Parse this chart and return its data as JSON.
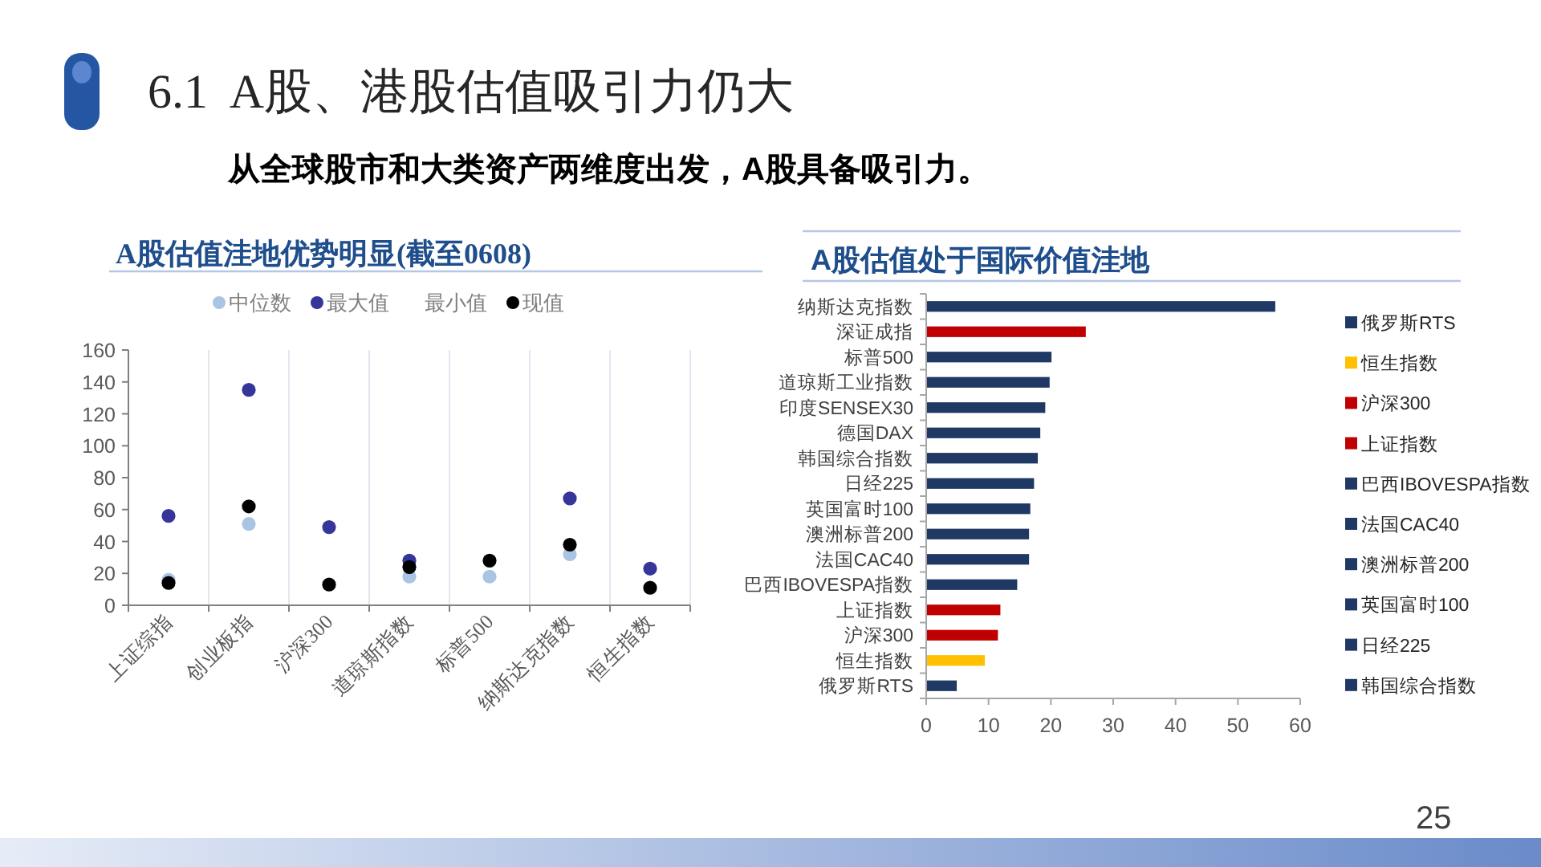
{
  "chart_data": [
    {
      "type": "scatter",
      "title": "A股估值洼地优势明显(截至0608)",
      "categories": [
        "上证综指",
        "创业板指",
        "沪深300",
        "道琼斯指数",
        "标普500",
        "纳斯达克指数",
        "恒生指数"
      ],
      "series": [
        {
          "name": "中位数",
          "color": "#a9c5e3",
          "values": [
            16,
            51,
            null,
            18,
            18,
            32,
            null
          ]
        },
        {
          "name": "最大值",
          "color": "#35359a",
          "values": [
            56,
            135,
            49,
            28,
            null,
            67,
            23
          ]
        },
        {
          "name": "最小值",
          "color": null,
          "values": [
            null,
            null,
            null,
            null,
            null,
            null,
            null
          ]
        },
        {
          "name": "现值",
          "color": "#000000",
          "values": [
            14,
            62,
            13,
            24,
            28,
            38,
            11
          ]
        }
      ],
      "ylim": [
        0,
        160
      ],
      "yticks": [
        0,
        20,
        40,
        60,
        80,
        100,
        120,
        140,
        160
      ],
      "marker": "circle",
      "legend": "top",
      "grid": "x",
      "annotations": [
        "6.1  A股、港股估值吸引力仍大",
        "从全球股市和大类资产两维度出发，A股具备吸引力。"
      ]
    },
    {
      "type": "bar",
      "orientation": "horizontal",
      "stacked": true,
      "title": "A股估值处于国际价值洼地",
      "categories": [
        "纳斯达克指数",
        "深证成指",
        "标普500",
        "道琼斯工业指数",
        "印度SENSEX30",
        "德国DAX",
        "韩国综合指数",
        "日经225",
        "英国富时100",
        "澳洲标普200",
        "法国CAC40",
        "巴西IBOVESPA指数",
        "上证指数",
        "沪深300",
        "恒生指数",
        "俄罗斯RTS"
      ],
      "series": [
        {
          "name": "俄罗斯RTS",
          "color": "#1f3864",
          "values": [
            null,
            null,
            null,
            null,
            null,
            null,
            null,
            null,
            null,
            null,
            null,
            null,
            null,
            null,
            null,
            4.9
          ]
        },
        {
          "name": "恒生指数",
          "color": "#ffc000",
          "values": [
            null,
            null,
            null,
            null,
            null,
            null,
            null,
            null,
            null,
            null,
            null,
            null,
            null,
            null,
            9.4,
            null
          ]
        },
        {
          "name": "沪深300",
          "color": "#c00000",
          "values": [
            null,
            null,
            null,
            null,
            null,
            null,
            null,
            null,
            null,
            null,
            null,
            null,
            null,
            11.5,
            null,
            null
          ]
        },
        {
          "name": "上证指数",
          "color": "#c00000",
          "values": [
            null,
            null,
            null,
            null,
            null,
            null,
            null,
            null,
            null,
            null,
            null,
            null,
            11.9,
            null,
            null,
            null
          ]
        },
        {
          "name": "巴西IBOVESPA指数",
          "color": "#1f3864",
          "values": [
            null,
            null,
            null,
            null,
            null,
            null,
            null,
            null,
            null,
            null,
            null,
            14.6,
            null,
            null,
            null,
            null
          ]
        },
        {
          "name": "法国CAC40",
          "color": "#1f3864",
          "values": [
            null,
            null,
            null,
            null,
            null,
            null,
            null,
            null,
            null,
            null,
            16.5,
            null,
            null,
            null,
            null,
            null
          ]
        },
        {
          "name": "澳洲标普200",
          "color": "#1f3864",
          "values": [
            null,
            null,
            null,
            null,
            null,
            null,
            null,
            null,
            null,
            16.5,
            null,
            null,
            null,
            null,
            null,
            null
          ]
        },
        {
          "name": "英国富时100",
          "color": "#1f3864",
          "values": [
            null,
            null,
            null,
            null,
            null,
            null,
            null,
            null,
            16.7,
            null,
            null,
            null,
            null,
            null,
            null,
            null
          ]
        },
        {
          "name": "日经225",
          "color": "#1f3864",
          "values": [
            null,
            null,
            null,
            null,
            null,
            null,
            null,
            17.3,
            null,
            null,
            null,
            null,
            null,
            null,
            null,
            null
          ]
        },
        {
          "name": "韩国综合指数",
          "color": "#1f3864",
          "values": [
            null,
            null,
            null,
            null,
            null,
            null,
            17.9,
            null,
            null,
            null,
            null,
            null,
            null,
            null,
            null,
            null
          ]
        },
        {
          "color": "#1f3864",
          "values": [
            null,
            null,
            null,
            null,
            null,
            18.3,
            null,
            null,
            null,
            null,
            null,
            null,
            null,
            null,
            null,
            null
          ]
        },
        {
          "color": "#1f3864",
          "values": [
            null,
            null,
            null,
            null,
            19.1,
            null,
            null,
            null,
            null,
            null,
            null,
            null,
            null,
            null,
            null,
            null
          ]
        },
        {
          "color": "#1f3864",
          "values": [
            null,
            null,
            null,
            19.8,
            null,
            null,
            null,
            null,
            null,
            null,
            null,
            null,
            null,
            null,
            null,
            null
          ]
        },
        {
          "color": "#1f3864",
          "values": [
            null,
            null,
            20.1,
            null,
            null,
            null,
            null,
            null,
            null,
            null,
            null,
            null,
            null,
            null,
            null,
            null
          ]
        },
        {
          "color": "#c00000",
          "values": [
            null,
            25.6,
            null,
            null,
            null,
            null,
            null,
            null,
            null,
            null,
            null,
            null,
            null,
            null,
            null,
            null
          ]
        },
        {
          "color": "#1f3864",
          "values": [
            56,
            null,
            null,
            null,
            null,
            null,
            null,
            null,
            null,
            null,
            null,
            null,
            null,
            null,
            null,
            null
          ]
        }
      ],
      "xlim": [
        0,
        60
      ],
      "xticks": [
        0,
        10,
        20,
        30,
        40,
        50,
        60
      ],
      "legend": "right",
      "annotations": [
        "25"
      ]
    }
  ]
}
